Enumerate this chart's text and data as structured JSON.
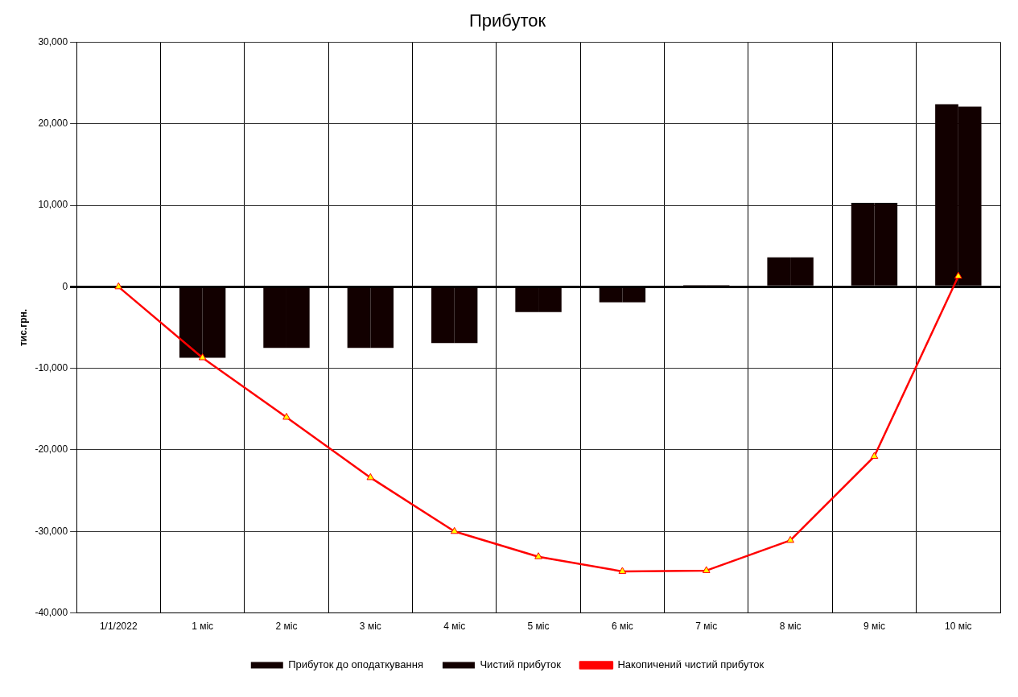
{
  "chart_data": {
    "type": "bar",
    "title": "Прибуток",
    "ylabel": "тис.грн.",
    "categories": [
      "1/1/2022",
      "1 міс",
      "2 міс",
      "3 міс",
      "4 міс",
      "5 міс",
      "6 міс",
      "7 міс",
      "8 міс",
      "9 міс",
      "10 міс"
    ],
    "series": [
      {
        "name": "Прибуток до оподаткування",
        "color": "#120000",
        "values": [
          null,
          -8700,
          -7500,
          -7500,
          -6900,
          -3100,
          -1900,
          200,
          3600,
          10300,
          22400
        ]
      },
      {
        "name": "Чистий прибуток",
        "color": "#120000",
        "values": [
          null,
          -8700,
          -7500,
          -7500,
          -6900,
          -3100,
          -1900,
          200,
          3600,
          10300,
          22100
        ]
      },
      {
        "name": "Накопичений чистий прибуток",
        "type": "line",
        "color": "#ff0000",
        "marker": "triangle",
        "values": [
          0,
          -8700,
          -16000,
          -23400,
          -30000,
          -33100,
          -34900,
          -34800,
          -31100,
          -20800,
          1300
        ]
      }
    ],
    "ylim": [
      -40000,
      30000
    ],
    "yticks": [
      {
        "value": -40000,
        "label": "-40,000"
      },
      {
        "value": -30000,
        "label": "-30,000"
      },
      {
        "value": -20000,
        "label": "-20,000"
      },
      {
        "value": -10000,
        "label": "-10,000"
      },
      0,
      {
        "value": 10000,
        "label": "10,000"
      },
      {
        "value": 20000,
        "label": "20,000"
      },
      {
        "value": 30000,
        "label": "30,000"
      }
    ],
    "grid": true,
    "legend": "bottom"
  }
}
